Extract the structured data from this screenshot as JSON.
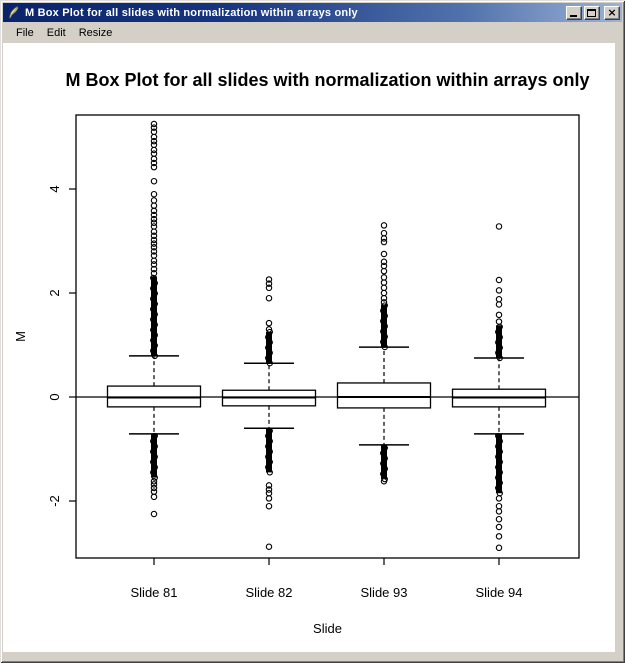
{
  "window": {
    "title": "M Box Plot for all slides with normalization within arrays only",
    "icon": "feather-quill",
    "menu": [
      "File",
      "Edit",
      "Resize"
    ],
    "controls": [
      "minimize",
      "maximize",
      "close"
    ],
    "titlebar_gradient": [
      "#0a246a",
      "#9db3d6"
    ],
    "chrome_color": "#d4d0c8"
  },
  "chart_data": {
    "type": "boxplot",
    "title": "M Box Plot for all slides with normalization within arrays only",
    "xlabel": "Slide",
    "ylabel": "M",
    "categories": [
      "Slide 81",
      "Slide 82",
      "Slide 93",
      "Slide 94"
    ],
    "y_ticks": [
      -2,
      0,
      2,
      4
    ],
    "ylim": [
      -3.1,
      5.4
    ],
    "reference_line_y": 0,
    "grid": false,
    "legend": "none",
    "stroke_color": "#000000",
    "background": "#ffffff",
    "series": [
      {
        "name": "Slide 81",
        "whisker_low": -0.71,
        "q1": -0.19,
        "median": -0.01,
        "q3": 0.21,
        "whisker_high": 0.79,
        "outlier_run_high": [
          0.79,
          2.32
        ],
        "outlier_run_low": [
          -1.55,
          -0.71
        ],
        "outliers_high": [
          2.38,
          2.46,
          2.55,
          2.62,
          2.72,
          2.8,
          2.88,
          2.95,
          3.02,
          3.1,
          3.18,
          3.28,
          3.35,
          3.42,
          3.5,
          3.58,
          3.68,
          3.78,
          3.9,
          4.15,
          4.42,
          4.5,
          4.58,
          4.68,
          4.75,
          4.85,
          4.92,
          5.0,
          5.1,
          5.18,
          5.25
        ],
        "outliers_low": [
          -1.62,
          -1.68,
          -1.75,
          -1.82,
          -1.92,
          -2.25
        ]
      },
      {
        "name": "Slide 82",
        "whisker_low": -0.6,
        "q1": -0.17,
        "median": -0.01,
        "q3": 0.13,
        "whisker_high": 0.65,
        "outlier_run_high": [
          0.65,
          1.25
        ],
        "outlier_run_low": [
          -1.45,
          -0.6
        ],
        "outliers_high": [
          1.3,
          1.42,
          1.9,
          2.1,
          2.18,
          2.26
        ],
        "outliers_low": [
          -1.7,
          -1.78,
          -1.85,
          -1.95,
          -2.1,
          -2.88
        ]
      },
      {
        "name": "Slide 93",
        "whisker_low": -0.92,
        "q1": -0.21,
        "median": 0.0,
        "q3": 0.27,
        "whisker_high": 0.96,
        "outlier_run_high": [
          0.96,
          1.78
        ],
        "outlier_run_low": [
          -1.58,
          -0.92
        ],
        "outliers_high": [
          1.82,
          1.9,
          2.0,
          2.1,
          2.2,
          2.3,
          2.42,
          2.52,
          2.6,
          2.75,
          2.98,
          3.05,
          3.15,
          3.3
        ],
        "outliers_low": [
          -1.62
        ]
      },
      {
        "name": "Slide 94",
        "whisker_low": -0.71,
        "q1": -0.19,
        "median": -0.01,
        "q3": 0.15,
        "whisker_high": 0.75,
        "outlier_run_high": [
          0.75,
          1.38
        ],
        "outlier_run_low": [
          -1.85,
          -0.71
        ],
        "outliers_high": [
          1.45,
          1.58,
          1.78,
          1.88,
          2.05,
          2.25,
          3.28
        ],
        "outliers_low": [
          -1.95,
          -2.1,
          -2.2,
          -2.35,
          -2.5,
          -2.68,
          -2.9
        ]
      }
    ]
  }
}
